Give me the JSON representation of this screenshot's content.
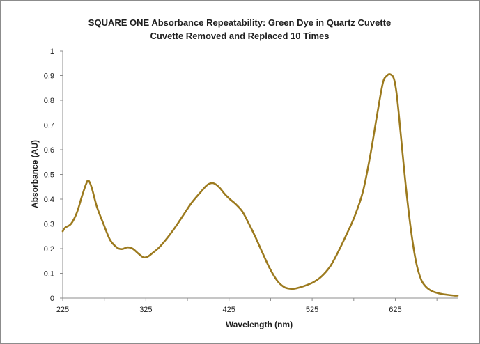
{
  "chart_data": {
    "type": "line",
    "title": "SQUARE ONE Absorbance Repeatability: Green Dye in Quartz Cuvette",
    "subtitle": "Cuvette Removed and Replaced 10 Times",
    "xlabel": "Wavelength (nm)",
    "ylabel": "Absorbance (AU)",
    "xlim": [
      225,
      700
    ],
    "ylim": [
      0,
      1
    ],
    "x_ticks": [
      225,
      325,
      425,
      525,
      625
    ],
    "y_ticks": [
      0,
      0.1,
      0.2,
      0.3,
      0.4,
      0.5,
      0.6,
      0.7,
      0.8,
      0.9,
      1
    ],
    "y_tick_labels": [
      "0",
      "0.1",
      "0.2",
      "0.3",
      "0.4",
      "0.5",
      "0.6",
      "0.7",
      "0.8",
      "0.9",
      "1"
    ],
    "grid": false,
    "legend": "none",
    "line_color": "#9c7a1e",
    "series": [
      {
        "x": [
          225,
          228,
          235,
          242,
          248,
          253,
          256,
          260,
          266,
          274,
          282,
          290,
          296,
          303,
          309,
          316,
          322,
          327,
          333,
          341,
          350,
          360,
          370,
          380,
          390,
          398,
          404,
          409,
          414,
          420,
          426,
          433,
          441,
          449,
          457,
          465,
          474,
          483,
          491,
          498,
          504,
          510,
          518,
          527,
          537,
          547,
          556,
          566,
          576,
          586,
          595,
          603,
          610,
          615,
          619,
          623,
          626,
          629,
          633,
          638,
          644,
          650,
          656,
          662,
          668,
          674,
          680,
          688,
          696,
          700
        ],
        "y": [
          0.27,
          0.285,
          0.3,
          0.345,
          0.41,
          0.46,
          0.475,
          0.445,
          0.37,
          0.3,
          0.235,
          0.205,
          0.198,
          0.205,
          0.2,
          0.18,
          0.165,
          0.167,
          0.182,
          0.205,
          0.24,
          0.285,
          0.335,
          0.385,
          0.425,
          0.455,
          0.465,
          0.46,
          0.445,
          0.42,
          0.4,
          0.38,
          0.35,
          0.3,
          0.245,
          0.185,
          0.12,
          0.07,
          0.045,
          0.038,
          0.038,
          0.043,
          0.052,
          0.065,
          0.09,
          0.13,
          0.185,
          0.255,
          0.33,
          0.43,
          0.58,
          0.74,
          0.87,
          0.9,
          0.905,
          0.89,
          0.84,
          0.75,
          0.61,
          0.44,
          0.27,
          0.145,
          0.075,
          0.045,
          0.03,
          0.022,
          0.017,
          0.013,
          0.01,
          0.01
        ]
      }
    ]
  }
}
